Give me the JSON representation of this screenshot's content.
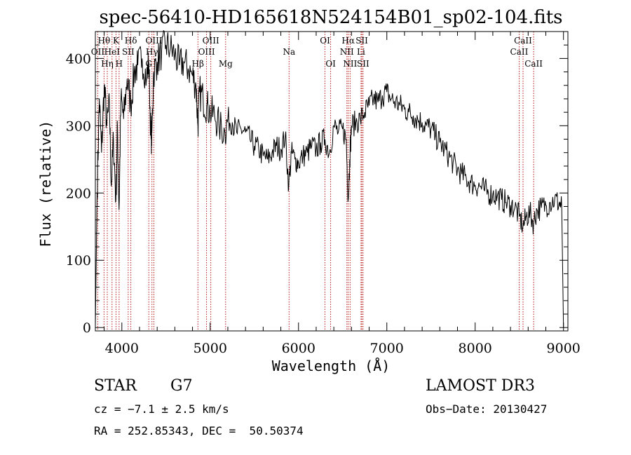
{
  "chart_data": {
    "type": "line",
    "title": "spec-56410-HD165618N524154B01_sp02-104.fits",
    "xlabel": "Wavelength (Å)",
    "ylabel": "Flux (relative)",
    "xlim": [
      3700,
      9050
    ],
    "ylim": [
      -5,
      440
    ],
    "xticks": [
      4000,
      5000,
      6000,
      7000,
      8000,
      9000
    ],
    "yticks": [
      0,
      100,
      200,
      300,
      400
    ],
    "grid": false,
    "colors": {
      "spectrum": "#000000",
      "line_markers": "#b00000"
    },
    "series": [
      {
        "values_x": [
          3700,
          3720,
          3745,
          3770,
          3800,
          3830,
          3860,
          3880,
          3905,
          3933,
          3950,
          3968,
          3990,
          4020,
          4060,
          4101,
          4140,
          4180,
          4230,
          4280,
          4305,
          4330,
          4340,
          4360,
          4400,
          4450,
          4500,
          4550,
          4600,
          4650,
          4700,
          4750,
          4800,
          4840,
          4861,
          4880,
          4920,
          4960,
          5000,
          5050,
          5100,
          5167,
          5200,
          5250,
          5300,
          5350,
          5400,
          5450,
          5500,
          5550,
          5600,
          5650,
          5700,
          5750,
          5800,
          5850,
          5890,
          5920,
          5960,
          6000,
          6050,
          6100,
          6150,
          6200,
          6250,
          6300,
          6350,
          6400,
          6450,
          6500,
          6540,
          6563,
          6580,
          6600,
          6650,
          6700,
          6750,
          6800,
          6850,
          6900,
          6950,
          7000,
          7050,
          7100,
          7150,
          7200,
          7250,
          7300,
          7350,
          7400,
          7450,
          7500,
          7550,
          7600,
          7650,
          7700,
          7750,
          7800,
          7850,
          7900,
          7950,
          8000,
          8050,
          8100,
          8150,
          8200,
          8250,
          8300,
          8350,
          8400,
          8450,
          8500,
          8542,
          8580,
          8620,
          8662,
          8700,
          8750,
          8800,
          8850,
          8900,
          8950,
          8980,
          9000
        ],
        "values_y": [
          0,
          200,
          340,
          260,
          360,
          300,
          330,
          210,
          280,
          190,
          300,
          175,
          340,
          310,
          370,
          330,
          380,
          390,
          400,
          370,
          395,
          280,
          290,
          380,
          395,
          410,
          420,
          415,
          405,
          390,
          395,
          385,
          375,
          360,
          300,
          350,
          340,
          330,
          320,
          315,
          300,
          290,
          310,
          305,
          290,
          295,
          290,
          280,
          270,
          265,
          255,
          250,
          260,
          270,
          265,
          285,
          210,
          260,
          250,
          245,
          255,
          260,
          270,
          265,
          275,
          280,
          260,
          300,
          290,
          295,
          280,
          190,
          250,
          300,
          305,
          310,
          320,
          330,
          340,
          335,
          345,
          350,
          340,
          335,
          330,
          325,
          320,
          315,
          310,
          305,
          300,
          295,
          285,
          275,
          265,
          255,
          245,
          235,
          228,
          222,
          215,
          212,
          210,
          205,
          200,
          198,
          195,
          190,
          186,
          182,
          178,
          165,
          150,
          165,
          170,
          155,
          175,
          178,
          182,
          186,
          190,
          185,
          180,
          0
        ]
      }
    ],
    "line_labels": [
      {
        "label": "Hθ",
        "row": 1,
        "wave": 3798
      },
      {
        "label": "OII",
        "row": 2,
        "wave": 3727
      },
      {
        "label": "HeI",
        "row": 2,
        "wave": 3889
      },
      {
        "label": "Hη",
        "row": 3,
        "wave": 3835
      },
      {
        "label": "K",
        "row": 1,
        "wave": 3934
      },
      {
        "label": "H",
        "row": 3,
        "wave": 3969
      },
      {
        "label": "Hδ",
        "row": 1,
        "wave": 4102
      },
      {
        "label": "SII",
        "row": 2,
        "wave": 4072
      },
      {
        "label": "OIII",
        "row": 1,
        "wave": 4363
      },
      {
        "label": "Hγ",
        "row": 2,
        "wave": 4341
      },
      {
        "label": "G",
        "row": 3,
        "wave": 4305
      },
      {
        "label": "Hβ",
        "row": 3,
        "wave": 4861
      },
      {
        "label": "OIII",
        "row": 1,
        "wave": 5007
      },
      {
        "label": "OIII",
        "row": 2,
        "wave": 4959
      },
      {
        "label": "Mg",
        "row": 3,
        "wave": 5175
      },
      {
        "label": "Na",
        "row": 2,
        "wave": 5893
      },
      {
        "label": "OI",
        "row": 1,
        "wave": 6300
      },
      {
        "label": "OI",
        "row": 3,
        "wave": 6364
      },
      {
        "label": "Hα",
        "row": 1,
        "wave": 6563
      },
      {
        "label": "SII",
        "row": 1,
        "wave": 6717
      },
      {
        "label": "NII",
        "row": 2,
        "wave": 6548
      },
      {
        "label": "Li",
        "row": 2,
        "wave": 6708
      },
      {
        "label": "NII",
        "row": 3,
        "wave": 6584
      },
      {
        "label": "SII",
        "row": 3,
        "wave": 6731
      },
      {
        "label": "CaII",
        "row": 1,
        "wave": 8542
      },
      {
        "label": "CaII",
        "row": 2,
        "wave": 8498
      },
      {
        "label": "CaII",
        "row": 3,
        "wave": 8662
      }
    ],
    "marker_waves": [
      3727,
      3798,
      3835,
      3889,
      3934,
      3969,
      4072,
      4102,
      4305,
      4341,
      4363,
      4861,
      4959,
      5007,
      5175,
      5893,
      6300,
      6364,
      6548,
      6563,
      6584,
      6708,
      6717,
      6731,
      8498,
      8542,
      8662
    ]
  },
  "info": {
    "object_type": "STAR",
    "subclass": "G7",
    "survey": "LAMOST DR3",
    "cz_line": "cz = −7.1 ± 2.5 km/s",
    "obs_date": "Obs−Date: 20130427",
    "coords": "RA = 252.85343, DEC =  50.50374"
  }
}
